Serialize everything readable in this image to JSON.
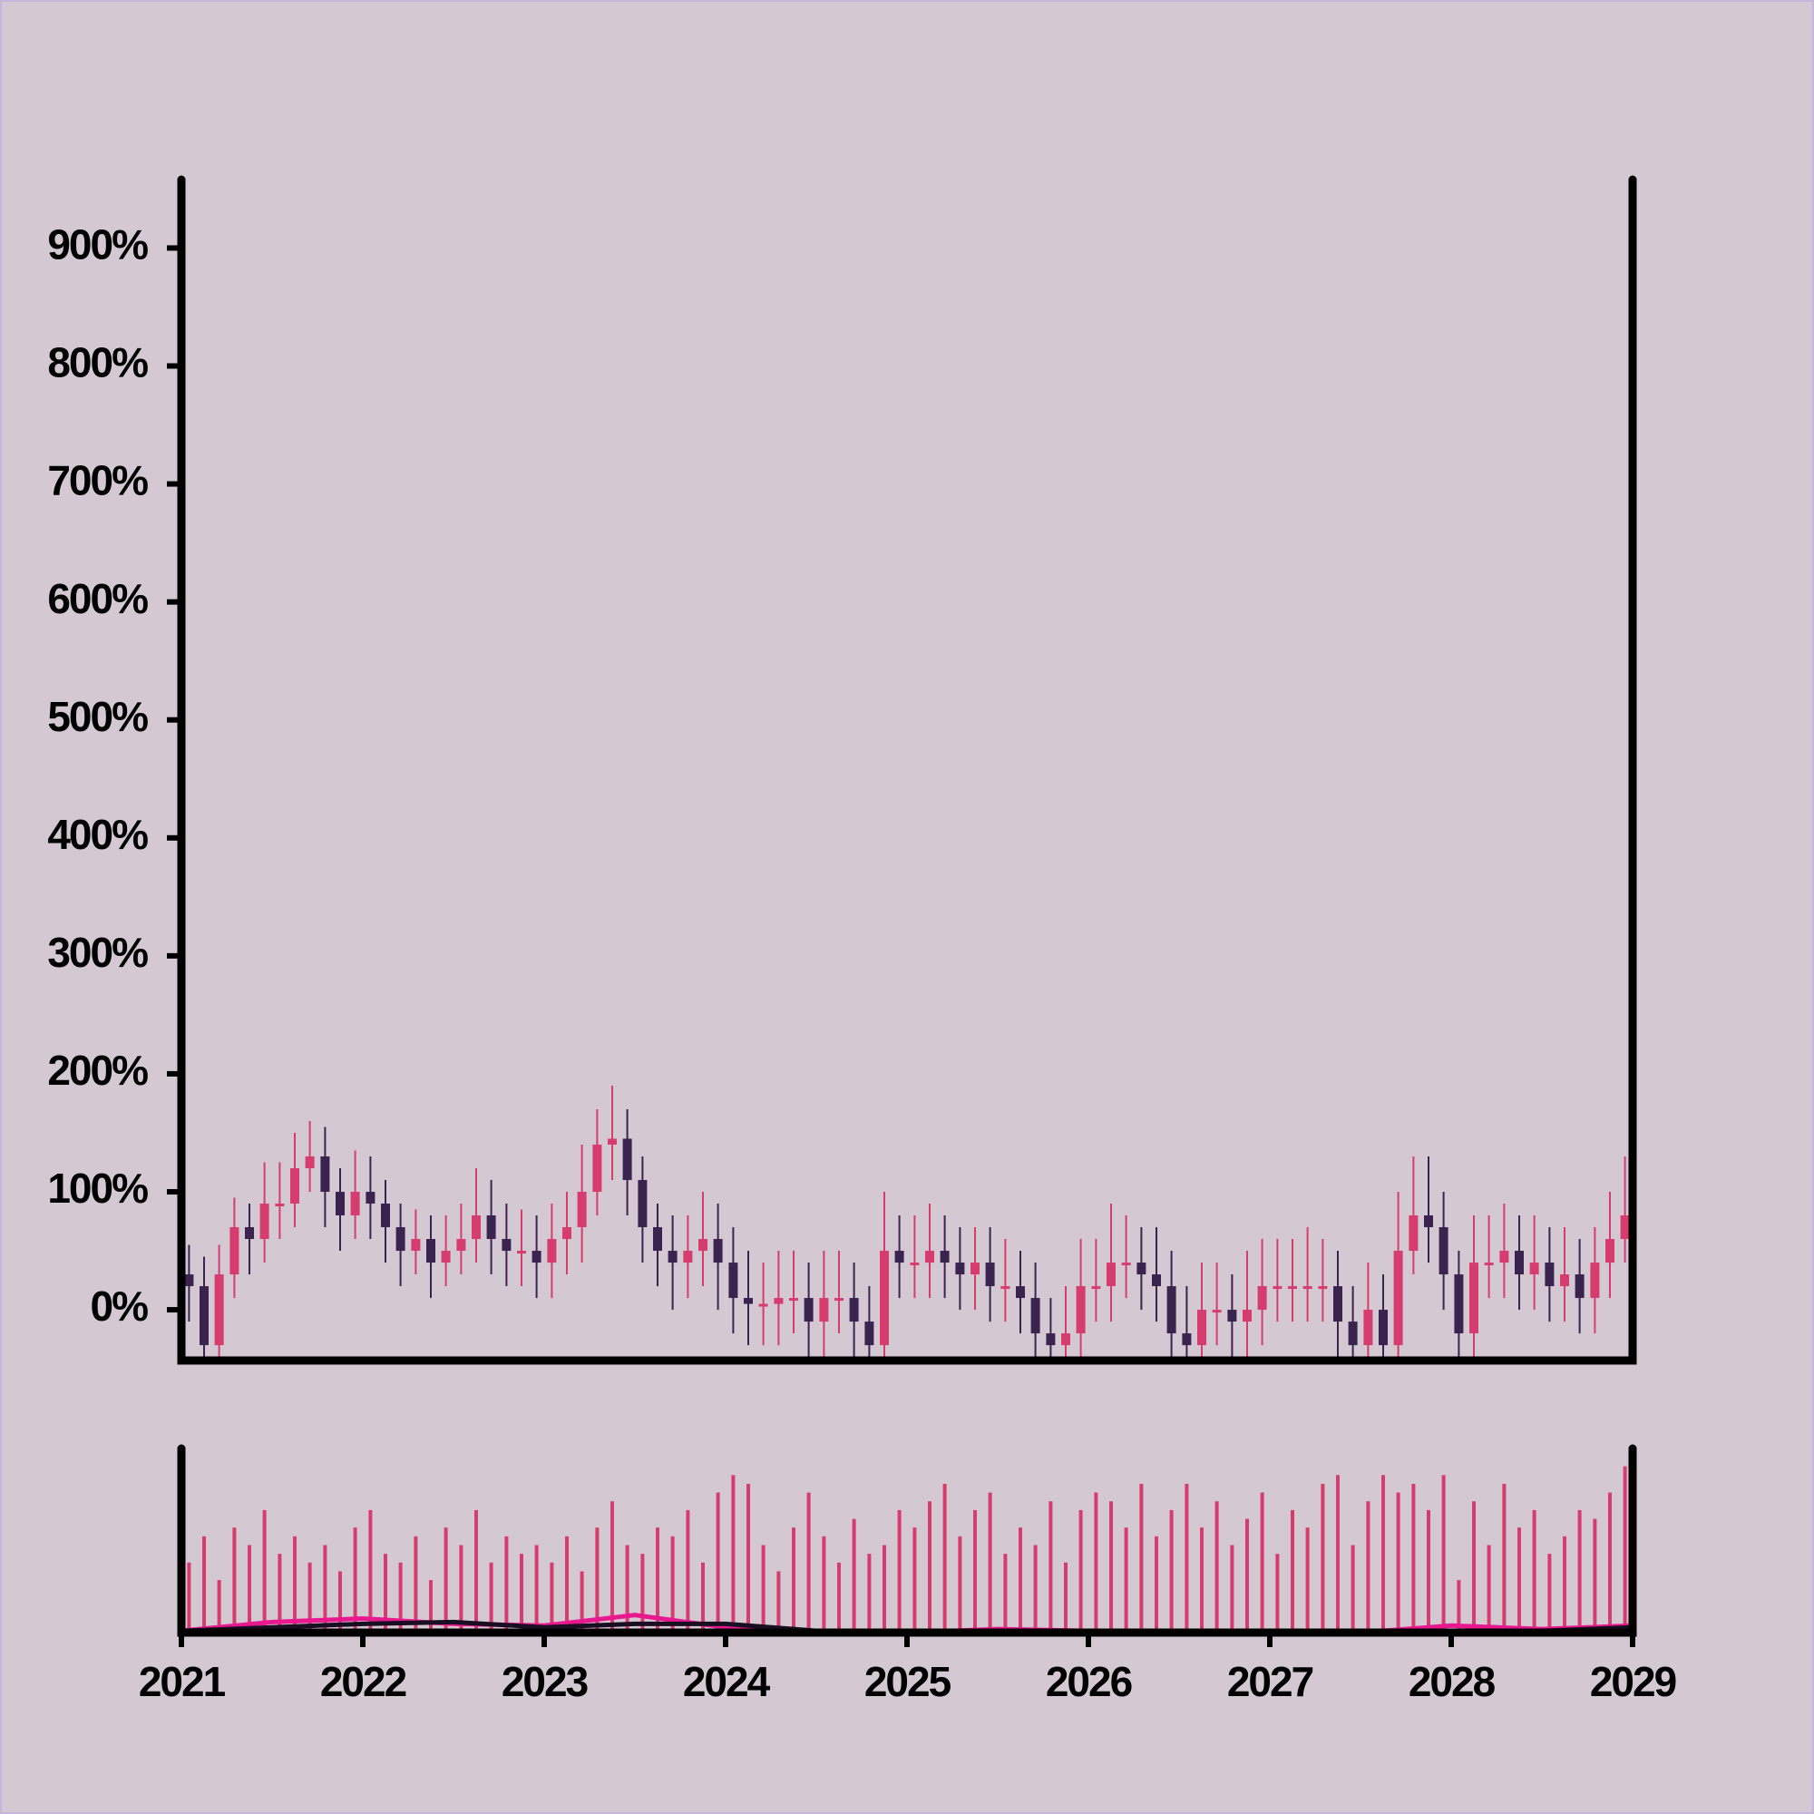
{
  "chart_data": {
    "type": "candlestick",
    "x": [
      2021.042,
      2021.125,
      2021.208,
      2021.292,
      2021.375,
      2021.458,
      2021.542,
      2021.625,
      2021.708,
      2021.792,
      2021.875,
      2021.958,
      2022.042,
      2022.125,
      2022.208,
      2022.292,
      2022.375,
      2022.458,
      2022.542,
      2022.625,
      2022.708,
      2022.792,
      2022.875,
      2022.958,
      2023.042,
      2023.125,
      2023.208,
      2023.292,
      2023.375,
      2023.458,
      2023.542,
      2023.625,
      2023.708,
      2023.792,
      2023.875,
      2023.958,
      2024.042,
      2024.125,
      2024.208,
      2024.292,
      2024.375,
      2024.458,
      2024.542,
      2024.625,
      2024.708,
      2024.792,
      2024.875,
      2024.958,
      2025.042,
      2025.125,
      2025.208,
      2025.292,
      2025.375,
      2025.458,
      2025.542,
      2025.625,
      2025.708,
      2025.792,
      2025.875,
      2025.958,
      2026.042,
      2026.125,
      2026.208,
      2026.292,
      2026.375,
      2026.458,
      2026.542,
      2026.625,
      2026.708,
      2026.792,
      2026.875,
      2026.958,
      2027.042,
      2027.125,
      2027.208,
      2027.292,
      2027.375,
      2027.458,
      2027.542,
      2027.625,
      2027.708,
      2027.792,
      2027.875,
      2027.958,
      2028.042,
      2028.125,
      2028.208,
      2028.292,
      2028.375,
      2028.458,
      2028.542,
      2028.625,
      2028.708,
      2028.792,
      2028.875,
      2028.958
    ],
    "open": [
      30,
      20,
      -30,
      30,
      70,
      60,
      90,
      90,
      120,
      130,
      100,
      80,
      100,
      90,
      70,
      50,
      60,
      40,
      50,
      60,
      80,
      60,
      50,
      50,
      40,
      60,
      70,
      100,
      140,
      145,
      110,
      70,
      50,
      40,
      50,
      60,
      40,
      10,
      5,
      5,
      10,
      10,
      -10,
      10,
      10,
      -10,
      -30,
      50,
      40,
      40,
      50,
      40,
      30,
      40,
      20,
      20,
      10,
      -20,
      -30,
      -20,
      20,
      20,
      40,
      40,
      30,
      20,
      -20,
      -30,
      0,
      0,
      -10,
      0,
      20,
      20,
      20,
      20,
      20,
      -10,
      -30,
      0,
      -30,
      50,
      80,
      70,
      30,
      -20,
      40,
      40,
      50,
      30,
      40,
      20,
      30,
      10,
      40,
      60
    ],
    "high": [
      55,
      45,
      55,
      95,
      90,
      125,
      125,
      150,
      160,
      155,
      120,
      135,
      130,
      110,
      90,
      85,
      80,
      80,
      90,
      120,
      110,
      90,
      85,
      80,
      90,
      100,
      140,
      170,
      190,
      170,
      130,
      90,
      80,
      80,
      100,
      90,
      70,
      50,
      40,
      50,
      50,
      40,
      50,
      50,
      40,
      20,
      100,
      80,
      80,
      90,
      80,
      70,
      70,
      70,
      60,
      50,
      40,
      10,
      20,
      60,
      60,
      90,
      80,
      70,
      70,
      50,
      20,
      40,
      40,
      30,
      50,
      60,
      60,
      60,
      70,
      60,
      50,
      20,
      40,
      30,
      100,
      130,
      130,
      100,
      50,
      80,
      80,
      90,
      80,
      80,
      70,
      70,
      60,
      70,
      100,
      130
    ],
    "low": [
      -10,
      -60,
      -50,
      10,
      30,
      40,
      60,
      70,
      100,
      70,
      50,
      60,
      60,
      40,
      20,
      30,
      10,
      20,
      30,
      40,
      30,
      20,
      20,
      10,
      10,
      30,
      40,
      80,
      110,
      80,
      40,
      20,
      0,
      10,
      20,
      0,
      -20,
      -30,
      -30,
      -30,
      -20,
      -40,
      -40,
      -20,
      -40,
      -60,
      -40,
      10,
      10,
      10,
      10,
      0,
      0,
      -10,
      -10,
      -20,
      -50,
      -60,
      -50,
      -40,
      -10,
      -10,
      10,
      0,
      -10,
      -50,
      -60,
      -60,
      -30,
      -40,
      -40,
      -30,
      -10,
      -10,
      -10,
      -10,
      -40,
      -60,
      -60,
      -60,
      -40,
      30,
      40,
      0,
      -60,
      -50,
      10,
      10,
      0,
      0,
      -10,
      -10,
      -20,
      -20,
      10,
      40
    ],
    "close": [
      20,
      -30,
      30,
      70,
      60,
      90,
      90,
      120,
      130,
      100,
      80,
      100,
      90,
      70,
      50,
      60,
      40,
      50,
      60,
      80,
      60,
      50,
      50,
      40,
      60,
      70,
      100,
      140,
      145,
      110,
      70,
      50,
      40,
      50,
      60,
      40,
      10,
      5,
      5,
      10,
      10,
      -10,
      10,
      10,
      -10,
      -30,
      50,
      40,
      40,
      50,
      40,
      30,
      40,
      20,
      20,
      10,
      -20,
      -30,
      -20,
      20,
      20,
      40,
      40,
      30,
      20,
      -20,
      -30,
      0,
      0,
      -10,
      0,
      20,
      20,
      20,
      20,
      20,
      -10,
      -30,
      0,
      -30,
      50,
      80,
      70,
      30,
      -20,
      40,
      40,
      50,
      30,
      40,
      20,
      30,
      10,
      40,
      60,
      80
    ],
    "volume": [
      40,
      55,
      30,
      60,
      50,
      70,
      45,
      55,
      40,
      50,
      35,
      60,
      70,
      45,
      40,
      55,
      30,
      60,
      50,
      70,
      40,
      55,
      45,
      50,
      40,
      55,
      35,
      60,
      75,
      50,
      45,
      60,
      55,
      70,
      40,
      80,
      90,
      85,
      50,
      35,
      60,
      80,
      55,
      40,
      65,
      45,
      50,
      70,
      60,
      75,
      85,
      55,
      70,
      80,
      45,
      60,
      50,
      75,
      40,
      70,
      80,
      75,
      60,
      85,
      55,
      70,
      85,
      60,
      75,
      50,
      65,
      80,
      45,
      70,
      60,
      85,
      90,
      50,
      75,
      90,
      80,
      85,
      70,
      90,
      30,
      75,
      50,
      85,
      60,
      70,
      45,
      55,
      70,
      65,
      80,
      95
    ],
    "up_color": "#d63c6e",
    "down_color": "#3b2350",
    "volume_color": "#d63c6e",
    "volume_ylim": [
      0,
      100
    ],
    "volume_lines": [
      {
        "color": "#e8188f",
        "x": [
          2021,
          2021.5,
          2022,
          2022.5,
          2023,
          2023.5,
          2024,
          2024.5,
          2025,
          2025.5,
          2026,
          2026.5,
          2027,
          2027.5,
          2028,
          2028.5,
          2029
        ],
        "values": [
          1,
          6,
          8,
          5,
          4,
          10,
          3,
          1,
          0,
          2,
          1,
          1,
          0,
          0,
          4,
          2,
          4
        ]
      },
      {
        "color": "#1a0f22",
        "x": [
          2021,
          2021.5,
          2022,
          2022.5,
          2023,
          2023.5,
          2024,
          2024.5,
          2025,
          2025.5,
          2026,
          2026.5,
          2027,
          2027.5,
          2028,
          2028.5,
          2029
        ],
        "values": [
          1,
          3,
          5,
          6,
          3,
          5,
          5,
          1,
          0,
          0,
          0,
          0,
          0,
          0,
          0,
          1,
          3
        ]
      }
    ],
    "xlim": [
      2021,
      2029
    ],
    "xticks": [
      2021,
      2022,
      2023,
      2024,
      2025,
      2026,
      2027,
      2028,
      2029
    ],
    "ylim": [
      -43,
      958
    ],
    "yticks": [
      {
        "value": 0,
        "label": "0%"
      },
      {
        "value": 100,
        "label": "100%"
      },
      {
        "value": 200,
        "label": "200%"
      },
      {
        "value": 300,
        "label": "300%"
      },
      {
        "value": 400,
        "label": "400%"
      },
      {
        "value": 500,
        "label": "500%"
      },
      {
        "value": 600,
        "label": "600%"
      },
      {
        "value": 700,
        "label": "700%"
      },
      {
        "value": 800,
        "label": "800%"
      },
      {
        "value": 900,
        "label": "900%"
      }
    ]
  }
}
